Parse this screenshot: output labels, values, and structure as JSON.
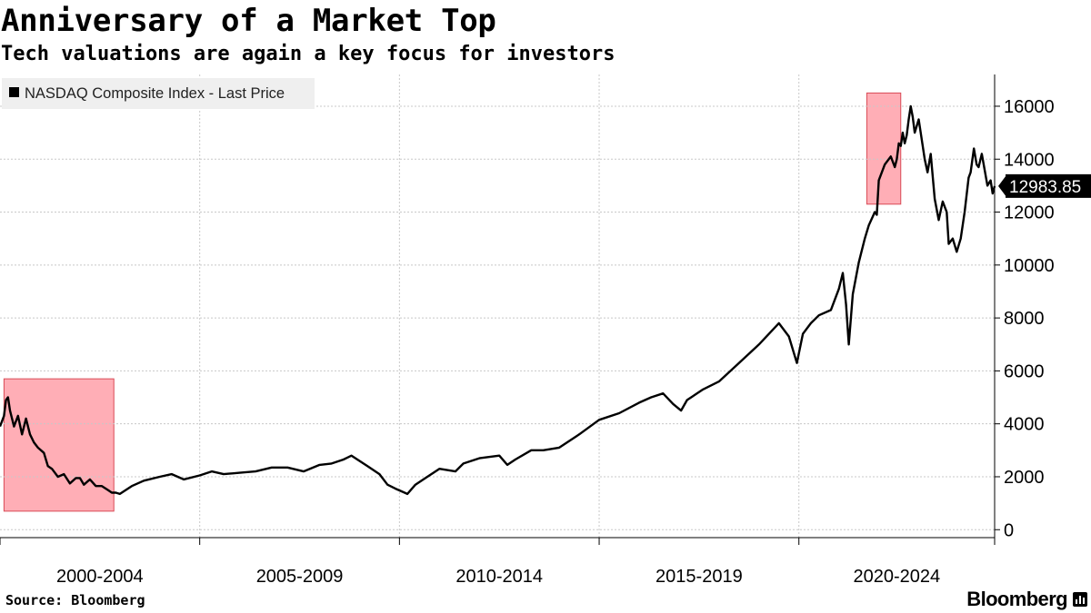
{
  "header": {
    "title": "Anniversary of a Market Top",
    "subtitle": "Tech valuations are again a key focus for investors"
  },
  "footer": {
    "source": "Source: Bloomberg",
    "brand": "Bloomberg"
  },
  "colors": {
    "line": "#000000",
    "highlight_fill": "#ffaab2",
    "highlight_stroke": "#d94a56",
    "grid": "#c8c8c8",
    "legend_bg": "#efefef",
    "last_price_bg": "#000000",
    "last_price_text": "#ffffff"
  },
  "chart_data": {
    "type": "line",
    "title": "Anniversary of a Market Top",
    "subtitle": "Tech valuations are again a key focus for investors",
    "legend": [
      "NASDAQ Composite Index - Last Price"
    ],
    "legend_placement": "top-left",
    "x_unit": "year",
    "xlim": [
      1999.0,
      2023.9
    ],
    "ylim": [
      -300,
      17200
    ],
    "y_axis_side": "right",
    "y_ticks": [
      0,
      2000,
      4000,
      6000,
      8000,
      10000,
      12000,
      14000,
      16000
    ],
    "y_tick_labels": [
      "0",
      "2000",
      "4000",
      "6000",
      "8000",
      "10000",
      "12000",
      "14000",
      "16000"
    ],
    "x_group_boundaries": [
      1999.0,
      2004.0,
      2009.0,
      2014.0,
      2019.0,
      2023.9
    ],
    "x_group_labels": [
      "2000-2004",
      "2005-2009",
      "2010-2014",
      "2015-2019",
      "2020-2024"
    ],
    "last_price": 12983.85,
    "last_price_label": "12983.85",
    "highlights": [
      {
        "name": "dot-com-peak",
        "x0": 1999.1,
        "x1": 2001.85,
        "y0": 700,
        "y1": 5700
      },
      {
        "name": "2021-peak",
        "x0": 2020.7,
        "x1": 2021.55,
        "y0": 12300,
        "y1": 16500
      }
    ],
    "series": [
      {
        "name": "NASDAQ Composite Index - Last Price",
        "x": [
          1999.0,
          1999.05,
          1999.1,
          1999.15,
          1999.2,
          1999.25,
          1999.35,
          1999.45,
          1999.55,
          1999.65,
          1999.75,
          1999.85,
          1999.95,
          2000.1,
          2000.2,
          2000.3,
          2000.45,
          2000.6,
          2000.75,
          2000.9,
          2001.0,
          2001.1,
          2001.25,
          2001.4,
          2001.55,
          2001.7,
          2001.8,
          2001.9,
          2002.0,
          2002.3,
          2002.6,
          2003.0,
          2003.3,
          2003.6,
          2004.0,
          2004.3,
          2004.6,
          2005.0,
          2005.4,
          2005.8,
          2006.2,
          2006.6,
          2007.0,
          2007.3,
          2007.6,
          2007.8,
          2008.2,
          2008.5,
          2008.7,
          2008.9,
          2009.05,
          2009.2,
          2009.4,
          2009.6,
          2010.0,
          2010.4,
          2010.6,
          2011.0,
          2011.5,
          2011.7,
          2011.9,
          2012.3,
          2012.6,
          2013.0,
          2013.5,
          2014.0,
          2014.5,
          2015.0,
          2015.3,
          2015.6,
          2015.85,
          2016.05,
          2016.2,
          2016.6,
          2017.0,
          2017.5,
          2018.0,
          2018.5,
          2018.75,
          2018.95,
          2019.1,
          2019.3,
          2019.5,
          2019.8,
          2020.0,
          2020.1,
          2020.18,
          2020.25,
          2020.35,
          2020.5,
          2020.65,
          2020.75,
          2020.9,
          2020.95,
          2021.0,
          2021.15,
          2021.3,
          2021.4,
          2021.45,
          2021.5,
          2021.55,
          2021.6,
          2021.65,
          2021.7,
          2021.75,
          2021.8,
          2021.85,
          2021.9,
          2022.0,
          2022.1,
          2022.15,
          2022.22,
          2022.3,
          2022.4,
          2022.5,
          2022.6,
          2022.7,
          2022.75,
          2022.85,
          2022.95,
          2023.05,
          2023.15,
          2023.25,
          2023.3,
          2023.38,
          2023.45,
          2023.5,
          2023.58,
          2023.65,
          2023.72,
          2023.8,
          2023.85,
          2023.9
        ],
        "y": [
          3900,
          4100,
          4300,
          4900,
          5000,
          4500,
          3900,
          4300,
          3600,
          4200,
          3600,
          3300,
          3100,
          2900,
          2400,
          2300,
          2000,
          2100,
          1750,
          1950,
          1950,
          1700,
          1900,
          1650,
          1650,
          1500,
          1400,
          1400,
          1350,
          1650,
          1850,
          2000,
          2100,
          1900,
          2050,
          2200,
          2100,
          2150,
          2200,
          2350,
          2350,
          2200,
          2450,
          2500,
          2650,
          2800,
          2400,
          2100,
          1700,
          1550,
          1450,
          1350,
          1700,
          1900,
          2300,
          2200,
          2500,
          2700,
          2800,
          2450,
          2650,
          3000,
          3000,
          3100,
          3600,
          4150,
          4400,
          4800,
          5000,
          5150,
          4750,
          4500,
          4900,
          5300,
          5600,
          6300,
          7000,
          7800,
          7300,
          6300,
          7400,
          7800,
          8100,
          8300,
          9100,
          9700,
          8500,
          7000,
          8900,
          10100,
          11000,
          11500,
          12000,
          11900,
          13200,
          13800,
          14100,
          13700,
          14000,
          14600,
          14500,
          15000,
          14600,
          14900,
          15500,
          16000,
          15600,
          15000,
          15500,
          14500,
          14000,
          13500,
          14200,
          12500,
          11700,
          12400,
          12000,
          10800,
          11000,
          10500,
          11000,
          12000,
          13300,
          13500,
          14400,
          13800,
          13700,
          14200,
          13600,
          13000,
          13200,
          12700,
          12983.85
        ]
      }
    ]
  }
}
